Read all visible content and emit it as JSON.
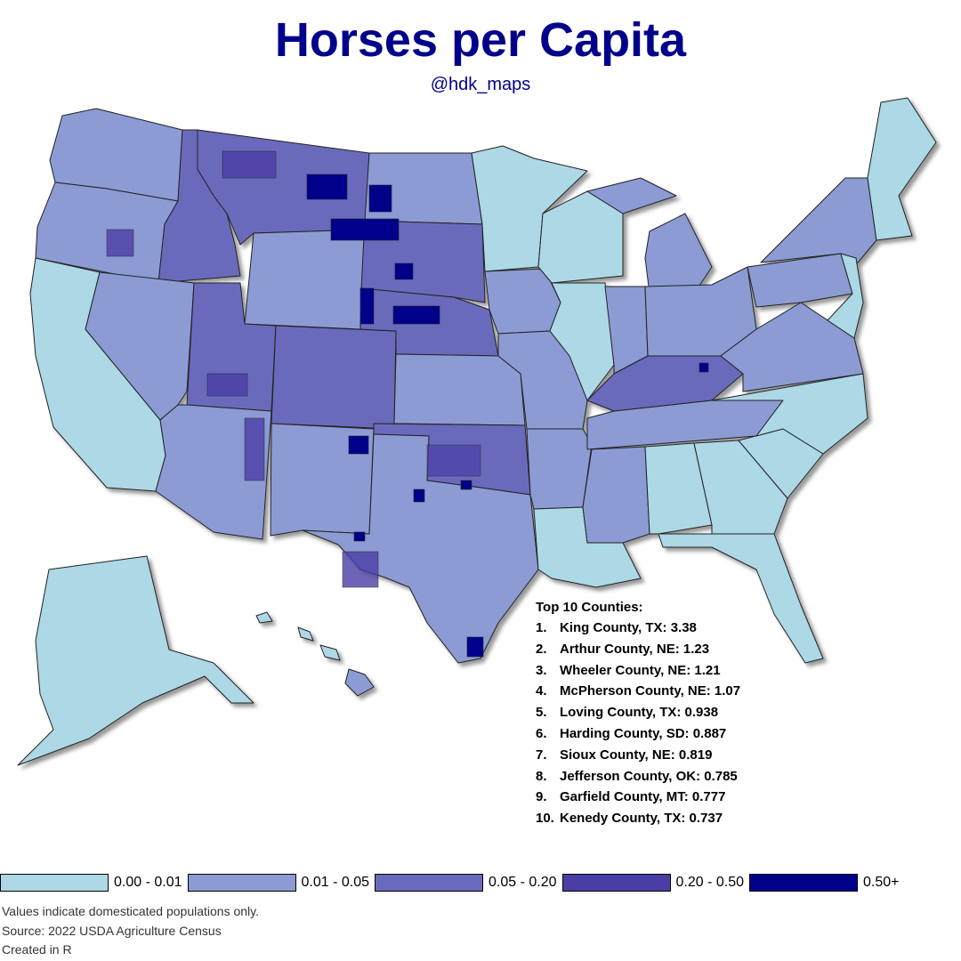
{
  "title": "Horses per Capita",
  "subtitle": "@hdk_maps",
  "top10": {
    "heading": "Top 10 Counties:",
    "items": [
      {
        "rank": "1.",
        "text": "King County, TX: 3.38"
      },
      {
        "rank": "2.",
        "text": "Arthur County, NE: 1.23"
      },
      {
        "rank": "3.",
        "text": "Wheeler County, NE: 1.21"
      },
      {
        "rank": "4.",
        "text": "McPherson County, NE: 1.07"
      },
      {
        "rank": "5.",
        "text": "Loving County, TX: 0.938"
      },
      {
        "rank": "6.",
        "text": "Harding County, SD: 0.887"
      },
      {
        "rank": "7.",
        "text": "Sioux County, NE: 0.819"
      },
      {
        "rank": "8.",
        "text": "Jefferson County, OK: 0.785"
      },
      {
        "rank": "9.",
        "text": "Garfield County, MT: 0.777"
      },
      {
        "rank": "10.",
        "text": "Kenedy County, TX: 0.737"
      }
    ]
  },
  "legend": [
    {
      "label": "0.00 - 0.01",
      "color": "#add8e6"
    },
    {
      "label": "0.01 - 0.05",
      "color": "#8c9bd4"
    },
    {
      "label": "0.05 - 0.20",
      "color": "#6a6abc"
    },
    {
      "label": "0.20 - 0.50",
      "color": "#4a3ea6"
    },
    {
      "label": "0.50+",
      "color": "#00008b"
    }
  ],
  "notes": [
    "Values indicate domesticated populations only.",
    "Source: 2022 USDA Agriculture Census",
    "Created in R"
  ],
  "colors": {
    "title": "#00008b",
    "border": "#1a1a1a",
    "shadow": "#555555"
  }
}
